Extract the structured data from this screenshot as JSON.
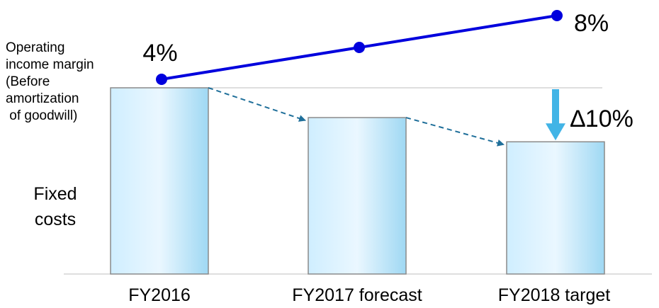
{
  "chart_data": {
    "type": "bar",
    "categories": [
      "FY2016",
      "FY2017 forecast",
      "FY2018 target"
    ],
    "bar_series": {
      "name": "Fixed costs",
      "name_lines": [
        "Fixed",
        "costs"
      ],
      "values": [
        100,
        84,
        71
      ]
    },
    "line_series": {
      "name": "Operating income margin (Before amortization of goodwill)",
      "name_lines": [
        "Operating",
        "income margin",
        "(Before",
        "amortization",
        " of goodwill)"
      ],
      "values": [
        4,
        6,
        8
      ],
      "start_label": "4%",
      "end_label": "8%"
    },
    "annotation": "∆10%",
    "colors": {
      "bar_edge": "#cfeeff",
      "bar_center": "#eaf7ff",
      "bar_side": "#9fd8f3",
      "bar_stroke": "#8a8a8a",
      "line": "#0000dd",
      "trend_arrow": "#1f6f9a",
      "reduction_arrow": "#42b4e6"
    }
  }
}
